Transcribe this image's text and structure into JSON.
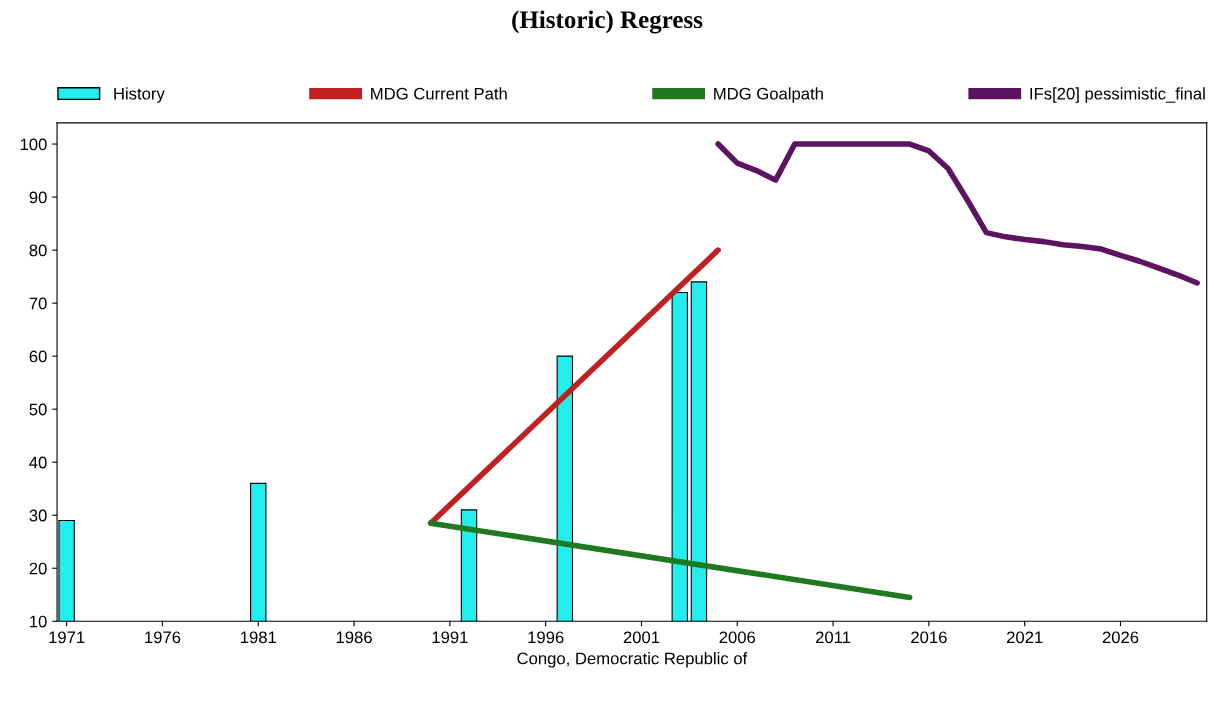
{
  "chart_data": {
    "type": "line",
    "title": "(Historic) Regress",
    "xlabel": "Congo, Democratic Republic of",
    "xlim": [
      1970.5,
      2030.5
    ],
    "xticks": [
      1971,
      1976,
      1981,
      1986,
      1991,
      1996,
      2001,
      2006,
      2011,
      2016,
      2021,
      2026
    ],
    "ylim": [
      10,
      104
    ],
    "yticks": [
      10,
      20,
      30,
      40,
      50,
      60,
      70,
      80,
      90,
      100
    ],
    "grid": false,
    "legend": "top",
    "marker": "none",
    "series": [
      {
        "name": "History",
        "type": "bar",
        "color": "#22eeee",
        "x": [
          1971,
          1981,
          1992,
          1997,
          2003,
          2004
        ],
        "values": [
          29,
          36,
          31,
          60,
          72,
          74
        ]
      },
      {
        "name": "MDG Current Path",
        "color": "#c0201f",
        "x": [
          1990,
          2005
        ],
        "values": [
          28.5,
          80
        ]
      },
      {
        "name": "MDG Goalpath",
        "color": "#1f7a1f",
        "x": [
          1990,
          2015
        ],
        "values": [
          28.5,
          14.5
        ]
      },
      {
        "name": "IFs[20] pessimistic_final",
        "color": "#5c1360",
        "x": [
          2005,
          2006,
          2007,
          2008,
          2009,
          2010,
          2011,
          2012,
          2013,
          2014,
          2015,
          2016,
          2017,
          2018,
          2019,
          2020,
          2021,
          2022,
          2023,
          2024,
          2025,
          2026,
          2027,
          2028,
          2029,
          2030
        ],
        "values": [
          100,
          96.4,
          95,
          93.2,
          100,
          100,
          100,
          100,
          100,
          100,
          100,
          98.7,
          95.4,
          89.5,
          83.3,
          82.5,
          82,
          81.6,
          81,
          80.7,
          80.2,
          79,
          77.9,
          76.6,
          75.3,
          73.8
        ]
      }
    ]
  }
}
